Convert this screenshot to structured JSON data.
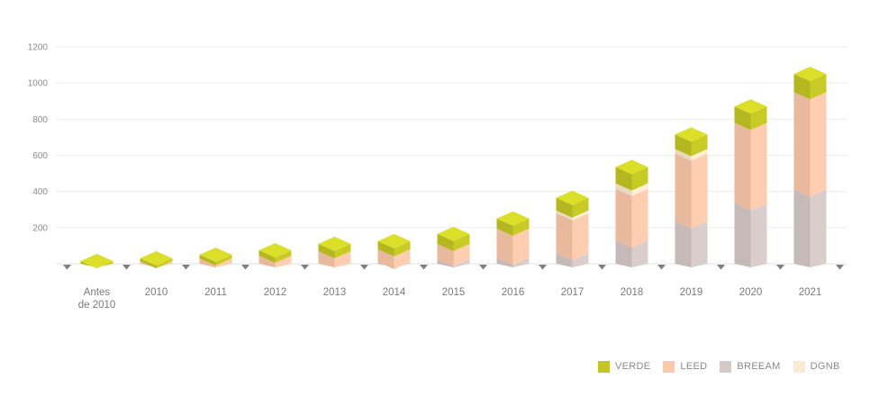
{
  "chart_data": {
    "type": "bar",
    "stacked": true,
    "style": "3d-isometric",
    "categories": [
      "Antes de 2010",
      "2010",
      "2011",
      "2012",
      "2013",
      "2014",
      "2015",
      "2016",
      "2017",
      "2018",
      "2019",
      "2020",
      "2021"
    ],
    "category_labels": [
      [
        "Antes",
        "de 2010"
      ],
      [
        "2010"
      ],
      [
        "2011"
      ],
      [
        "2012"
      ],
      [
        "2013"
      ],
      [
        "2014"
      ],
      [
        "2015"
      ],
      [
        "2016"
      ],
      [
        "2017"
      ],
      [
        "2018"
      ],
      [
        "2019"
      ],
      [
        "2020"
      ],
      [
        "2021"
      ]
    ],
    "series": [
      {
        "name": "BREEAM",
        "color": "#d6cac8",
        "values": [
          0,
          0,
          0,
          0,
          0,
          10,
          25,
          35,
          60,
          130,
          235,
          335,
          410
        ]
      },
      {
        "name": "LEED",
        "color": "#fdc9ac",
        "values": [
          0,
          15,
          30,
          45,
          70,
          70,
          85,
          160,
          220,
          285,
          375,
          445,
          540
        ]
      },
      {
        "name": "DGNB",
        "color": "#fdebd1",
        "values": [
          0,
          0,
          0,
          0,
          0,
          0,
          0,
          0,
          15,
          30,
          25,
          0,
          0
        ]
      },
      {
        "name": "VERDE",
        "color": "#c4c723",
        "values": [
          15,
          15,
          20,
          30,
          40,
          45,
          55,
          55,
          70,
          90,
          80,
          90,
          100
        ]
      }
    ],
    "legend_order": [
      "VERDE",
      "LEED",
      "BREEAM",
      "DGNB"
    ],
    "y_ticks": [
      200,
      400,
      600,
      800,
      1000,
      1200
    ],
    "ylim": [
      0,
      1200
    ],
    "title": "",
    "xlabel": "",
    "ylabel": "",
    "grid": true,
    "legend_position": "bottom-right"
  }
}
